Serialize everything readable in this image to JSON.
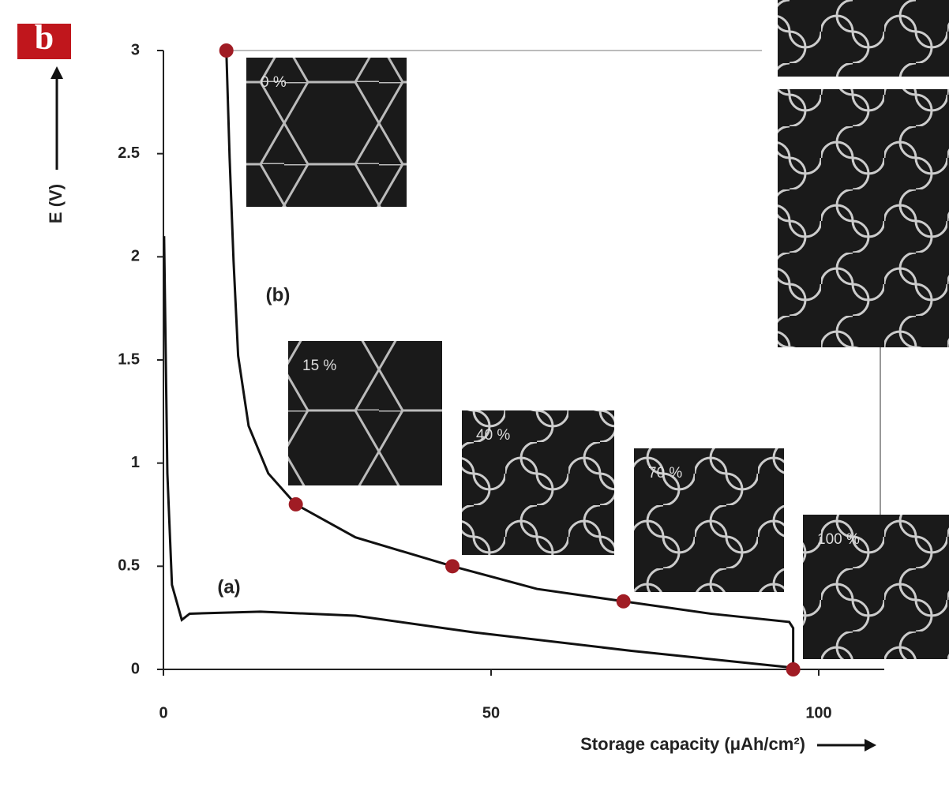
{
  "chart_data": {
    "type": "line",
    "panel_label": "b",
    "xlabel": "Storage capacity (μAh/cm²)",
    "ylabel": "E (V)",
    "xlim": [
      0,
      110
    ],
    "ylim": [
      0,
      3
    ],
    "xticks": [
      0,
      50,
      100
    ],
    "yticks": [
      0,
      0.5,
      1,
      1.5,
      2,
      2.5,
      3
    ],
    "series": [
      {
        "name": "(a)",
        "color": "#111111",
        "x": [
          0.1,
          0.6,
          1.3,
          2.8,
          4,
          14.8,
          29.3,
          47.3,
          71.4,
          95.5,
          96.1
        ],
        "values": [
          2.1,
          0.95,
          0.41,
          0.24,
          0.27,
          0.28,
          0.26,
          0.18,
          0.09,
          0.01,
          0
        ]
      },
      {
        "name": "(b)",
        "color": "#111111",
        "x": [
          9.6,
          10.1,
          10.7,
          11.4,
          13.0,
          16.0,
          20.2,
          29.3,
          44.1,
          57.0,
          70.2,
          83.5,
          95.5,
          96.1,
          96.1
        ],
        "values": [
          3,
          2.48,
          1.98,
          1.52,
          1.18,
          0.95,
          0.8,
          0.64,
          0.5,
          0.39,
          0.33,
          0.27,
          0.23,
          0.2,
          0
        ]
      }
    ],
    "points": {
      "color": "#a01c24",
      "x": [
        9.6,
        20.2,
        44.1,
        70.2,
        96.1
      ],
      "values": [
        3,
        0.8,
        0.5,
        0.33,
        0
      ]
    },
    "annotations": [
      "0 %",
      "15 %",
      "40 %",
      "70 %",
      "100 %"
    ]
  }
}
